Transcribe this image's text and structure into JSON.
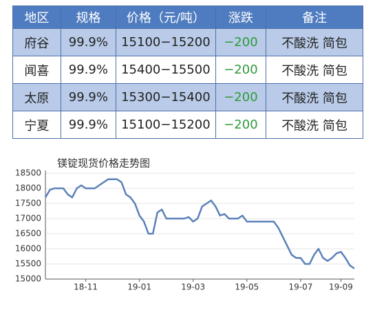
{
  "table": {
    "header": [
      "地区",
      "规格",
      "价格（元/吨）",
      "涨跌",
      "备注"
    ],
    "rows": [
      [
        "府谷",
        "99.9%",
        "15100−15200",
        "−200",
        "不酸洗 简包"
      ],
      [
        "闻喜",
        "99.9%",
        "15400−15500",
        "−200",
        "不酸洗 简包"
      ],
      [
        "太原",
        "99.9%",
        "15300−15400",
        "−200",
        "不酸洗 简包"
      ],
      [
        "宁夏",
        "99.9%",
        "15100−15200",
        "−200",
        "不酸洗 简包"
      ]
    ]
  },
  "chart_data": {
    "type": "line",
    "title": "镁锭现货价格走势图",
    "categories": [
      null,
      null,
      null,
      null,
      null,
      null,
      null,
      null,
      null,
      "18-11",
      null,
      null,
      null,
      null,
      null,
      null,
      null,
      null,
      null,
      null,
      null,
      "19-01",
      null,
      null,
      null,
      null,
      null,
      null,
      null,
      null,
      null,
      null,
      null,
      "19-03",
      null,
      null,
      null,
      null,
      null,
      null,
      null,
      null,
      null,
      null,
      null,
      "19-05",
      null,
      null,
      null,
      null,
      null,
      null,
      null,
      null,
      null,
      null,
      null,
      "19-07",
      null,
      null,
      null,
      null,
      null,
      null,
      null,
      null,
      "19-09",
      null,
      null,
      null
    ],
    "series": [
      {
        "color": "#5a80b8",
        "values": [
          17700,
          17950,
          18000,
          18000,
          18000,
          17800,
          17700,
          18000,
          18100,
          18000,
          18000,
          18000,
          18100,
          18200,
          18300,
          18300,
          18300,
          18200,
          17800,
          17700,
          17500,
          17100,
          16900,
          16500,
          16500,
          17200,
          17300,
          17000,
          17000,
          17000,
          17000,
          17000,
          17050,
          16900,
          17000,
          17400,
          17500,
          17600,
          17400,
          17100,
          17150,
          17000,
          17000,
          17000,
          17100,
          16900,
          16900,
          16900,
          16900,
          16900,
          16900,
          16900,
          16700,
          16400,
          16100,
          15800,
          15700,
          15700,
          15500,
          15500,
          15800,
          16000,
          15700,
          15600,
          15700,
          15850,
          15900,
          15700,
          15450,
          15350
        ]
      }
    ],
    "ylim": [
      15000,
      18500
    ],
    "yticks": [
      15000,
      15500,
      16000,
      16500,
      17000,
      17500,
      18000,
      18500
    ],
    "grid": true
  }
}
